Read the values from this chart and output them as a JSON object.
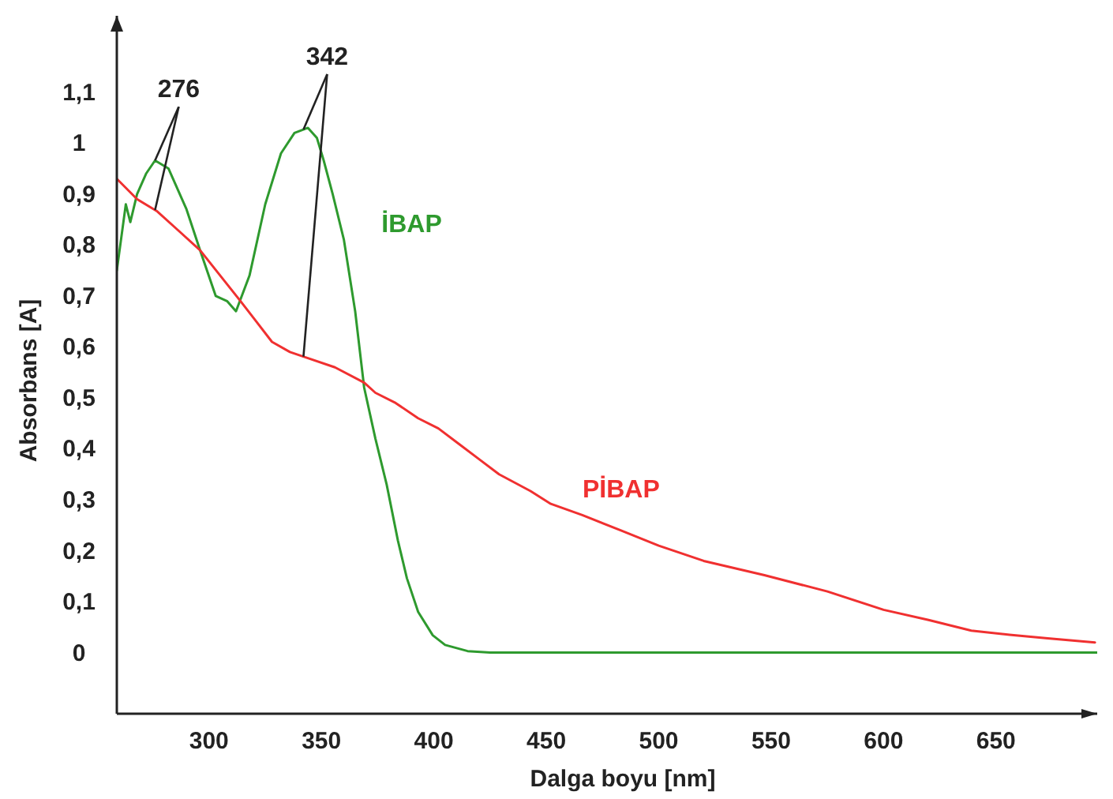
{
  "chart_data": {
    "type": "line",
    "xlabel": "Dalga boyu  [nm]",
    "ylabel": "Absorbans [A]",
    "xlim": [
      259,
      695
    ],
    "ylim": [
      -0.12,
      1.25
    ],
    "xticks": [
      300,
      350,
      400,
      450,
      500,
      550,
      600,
      650
    ],
    "yticks": [
      0,
      {
        "value": 0.1,
        "label": "0,1"
      },
      {
        "value": 0.2,
        "label": "0,2"
      },
      {
        "value": 0.3,
        "label": "0,3"
      },
      {
        "value": 0.4,
        "label": "0,4"
      },
      {
        "value": 0.5,
        "label": "0,5"
      },
      {
        "value": 0.6,
        "label": "0,6"
      },
      {
        "value": 0.7,
        "label": "0,7"
      },
      {
        "value": 0.8,
        "label": "0,8"
      },
      {
        "value": 0.9,
        "label": "0,9"
      },
      1,
      {
        "value": 1.1,
        "label": "1,1"
      }
    ],
    "grid": false,
    "line_style": "solid",
    "series": [
      {
        "name": "İBAP",
        "color": "#2e9a2e",
        "x": [
          259,
          263,
          265,
          268,
          272,
          276,
          282,
          290,
          296,
          303,
          308,
          312,
          318,
          325,
          332,
          338,
          344,
          348,
          351,
          355,
          360,
          365,
          369,
          374,
          379,
          384,
          388,
          393,
          399.5,
          405,
          415,
          425,
          450,
          500,
          550,
          600,
          650,
          695
        ],
        "values": [
          0.75,
          0.88,
          0.845,
          0.9,
          0.94,
          0.966,
          0.95,
          0.87,
          0.79,
          0.7,
          0.69,
          0.67,
          0.74,
          0.88,
          0.98,
          1.02,
          1.03,
          1.01,
          0.966,
          0.9,
          0.81,
          0.67,
          0.52,
          0.42,
          0.33,
          0.22,
          0.146,
          0.08,
          0.034,
          0.015,
          0.003,
          0,
          0,
          0,
          0,
          0,
          0,
          0
        ]
      },
      {
        "name": "PİBAP",
        "color": "#f03030",
        "x": [
          259,
          268,
          277,
          286,
          296,
          305,
          314,
          321,
          328,
          336,
          344,
          356,
          369,
          374,
          383,
          393,
          402,
          411,
          420,
          429,
          443,
          452,
          466,
          483,
          500,
          520,
          547,
          575,
          600,
          620,
          639,
          656,
          673,
          694
        ],
        "values": [
          0.93,
          0.89,
          0.866,
          0.83,
          0.79,
          0.74,
          0.69,
          0.65,
          0.61,
          0.59,
          0.578,
          0.56,
          0.53,
          0.51,
          0.49,
          0.46,
          0.44,
          0.41,
          0.38,
          0.35,
          0.317,
          0.292,
          0.27,
          0.24,
          0.21,
          0.18,
          0.152,
          0.12,
          0.084,
          0.064,
          0.043,
          0.035,
          0.028,
          0.02
        ]
      }
    ],
    "annotations": [
      {
        "text": "276",
        "x": 276,
        "y": 0.966
      },
      {
        "text": "342",
        "x": 342,
        "y": 1.03
      }
    ]
  }
}
